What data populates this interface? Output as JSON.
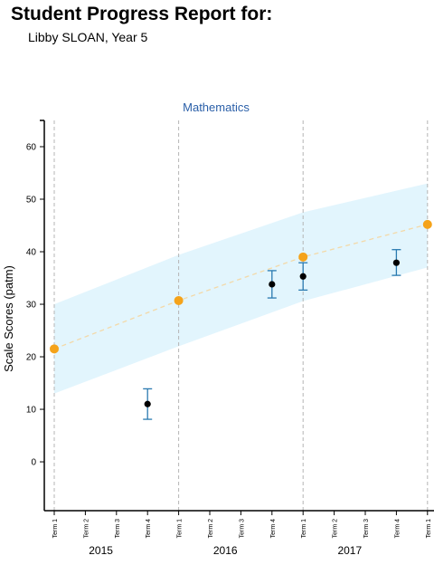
{
  "header": {
    "title": "Student Progress Report for:",
    "student": "Libby SLOAN, Year 5"
  },
  "colors": {
    "band": "#e2f5fd",
    "expected": "#f5a31a",
    "student": "#000000",
    "error_bar": "#2a7ab0",
    "title": "#2a5fa8",
    "gridline": "#b5b5b5"
  },
  "chart_data": {
    "type": "scatter",
    "title": "Mathematics",
    "ylabel": "Scale Scores (patm)",
    "ylim": [
      -9.3,
      65
    ],
    "yticks": [
      0,
      10,
      20,
      30,
      40,
      50,
      60
    ],
    "x_categories": [
      "Term 1",
      "Term 2",
      "Term 3",
      "Term 4",
      "Term 1",
      "Term 2",
      "Term 3",
      "Term 4",
      "Term 1",
      "Term 2",
      "Term 3",
      "Term 4",
      "Term 1"
    ],
    "years": [
      {
        "label": "2015",
        "center": 1.5
      },
      {
        "label": "2016",
        "center": 5.5
      },
      {
        "label": "2017",
        "center": 9.5
      }
    ],
    "year_gridlines": [
      0,
      4,
      8,
      12
    ],
    "band": {
      "x": [
        0,
        4,
        8,
        12
      ],
      "upper": [
        30,
        39.4,
        47.5,
        53
      ],
      "lower": [
        13,
        22,
        30.6,
        37
      ]
    },
    "series": [
      {
        "kind": "expected",
        "points": [
          {
            "x": 0,
            "y": 21.5
          },
          {
            "x": 4,
            "y": 30.7
          },
          {
            "x": 8,
            "y": 39
          },
          {
            "x": 12,
            "y": 45.2
          }
        ]
      },
      {
        "kind": "student",
        "points": [
          {
            "x": 3,
            "y": 11,
            "low": 8.1,
            "high": 13.9
          },
          {
            "x": 7,
            "y": 33.8,
            "low": 31.2,
            "high": 36.4
          },
          {
            "x": 8,
            "y": 35.3,
            "low": 32.7,
            "high": 37.9
          },
          {
            "x": 11,
            "y": 37.9,
            "low": 35.5,
            "high": 40.4
          }
        ]
      }
    ]
  }
}
